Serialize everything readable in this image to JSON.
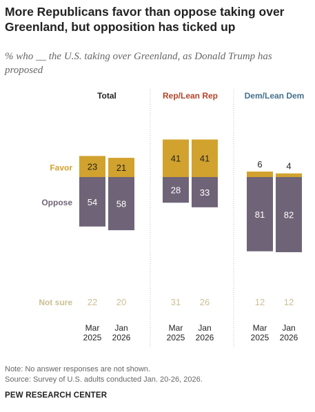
{
  "title": "More Republicans favor than oppose taking over Greenland, but opposition has ticked up",
  "subtitle": "% who __ the U.S. taking over Greenland, as Donald Trump has proposed",
  "note": "Note: No answer responses are not shown.",
  "source": "Source: Survey of U.S. adults conducted Jan. 20-26, 2026.",
  "brand": "PEW RESEARCH CENTER",
  "colors": {
    "favor": "#d2a22e",
    "oppose": "#6f6477",
    "not_sure": "#cbbf93",
    "rep": "#b4432a",
    "dem": "#44708c",
    "total": "#222222",
    "divider": "#bcbcbc"
  },
  "chart_data": {
    "type": "bar",
    "row_labels": {
      "favor": "Favor",
      "oppose": "Oppose",
      "not_sure": "Not sure"
    },
    "groups": [
      {
        "name": "Total",
        "bars": [
          {
            "period": [
              "Mar",
              "2025"
            ],
            "favor": 23,
            "oppose": 54,
            "not_sure": 22
          },
          {
            "period": [
              "Jan",
              "2026"
            ],
            "favor": 21,
            "oppose": 58,
            "not_sure": 20
          }
        ]
      },
      {
        "name": "Rep/Lean Rep",
        "bars": [
          {
            "period": [
              "Mar",
              "2025"
            ],
            "favor": 41,
            "oppose": 28,
            "not_sure": 31
          },
          {
            "period": [
              "Jan",
              "2026"
            ],
            "favor": 41,
            "oppose": 33,
            "not_sure": 26
          }
        ]
      },
      {
        "name": "Dem/Lean Dem",
        "bars": [
          {
            "period": [
              "Mar",
              "2025"
            ],
            "favor": 6,
            "oppose": 81,
            "not_sure": 12
          },
          {
            "period": [
              "Jan",
              "2026"
            ],
            "favor": 4,
            "oppose": 82,
            "not_sure": 12
          }
        ]
      }
    ]
  }
}
